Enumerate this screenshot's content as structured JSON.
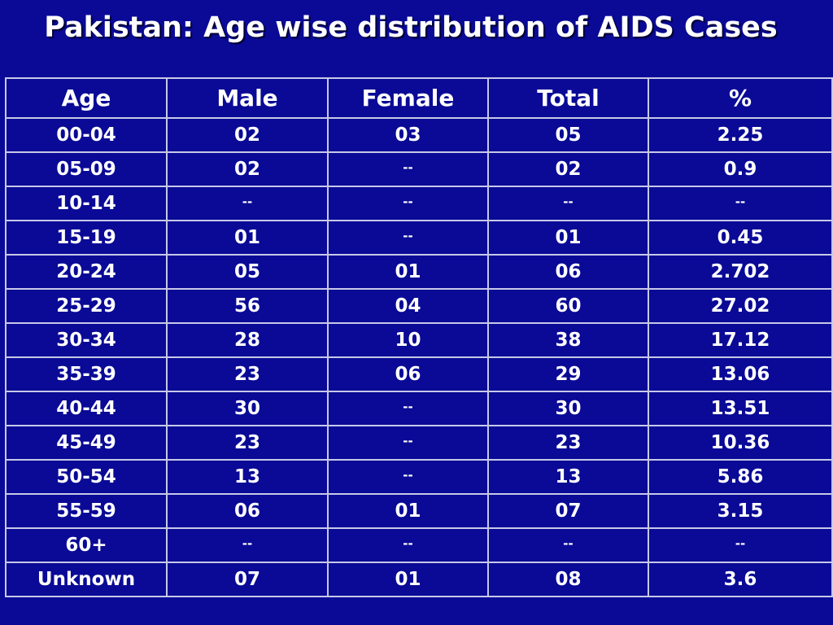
{
  "title": "Pakistan: Age wise distribution of AIDS Cases",
  "table": {
    "headers": [
      "Age",
      "Male",
      "Female",
      "Total",
      "%"
    ],
    "rows": [
      [
        "00-04",
        "02",
        "03",
        "05",
        "2.25"
      ],
      [
        "05-09",
        "02",
        "--",
        "02",
        "0.9"
      ],
      [
        "10-14",
        "--",
        "--",
        "--",
        "--"
      ],
      [
        "15-19",
        "01",
        "--",
        "01",
        "0.45"
      ],
      [
        "20-24",
        "05",
        "01",
        "06",
        "2.702"
      ],
      [
        "25-29",
        "56",
        "04",
        "60",
        "27.02"
      ],
      [
        "30-34",
        "28",
        "10",
        "38",
        "17.12"
      ],
      [
        "35-39",
        "23",
        "06",
        "29",
        "13.06"
      ],
      [
        "40-44",
        "30",
        "--",
        "30",
        "13.51"
      ],
      [
        "45-49",
        "23",
        "--",
        "23",
        "10.36"
      ],
      [
        "50-54",
        "13",
        "--",
        "13",
        "5.86"
      ],
      [
        "55-59",
        "06",
        "01",
        "07",
        "3.15"
      ],
      [
        "60+",
        "--",
        "--",
        "--",
        "--"
      ],
      [
        "Unknown",
        "07",
        "01",
        "08",
        "3.6"
      ]
    ]
  },
  "colors": {
    "background": "#0a0a96",
    "text": "#ffffff",
    "grid": "#c8c8e8"
  }
}
